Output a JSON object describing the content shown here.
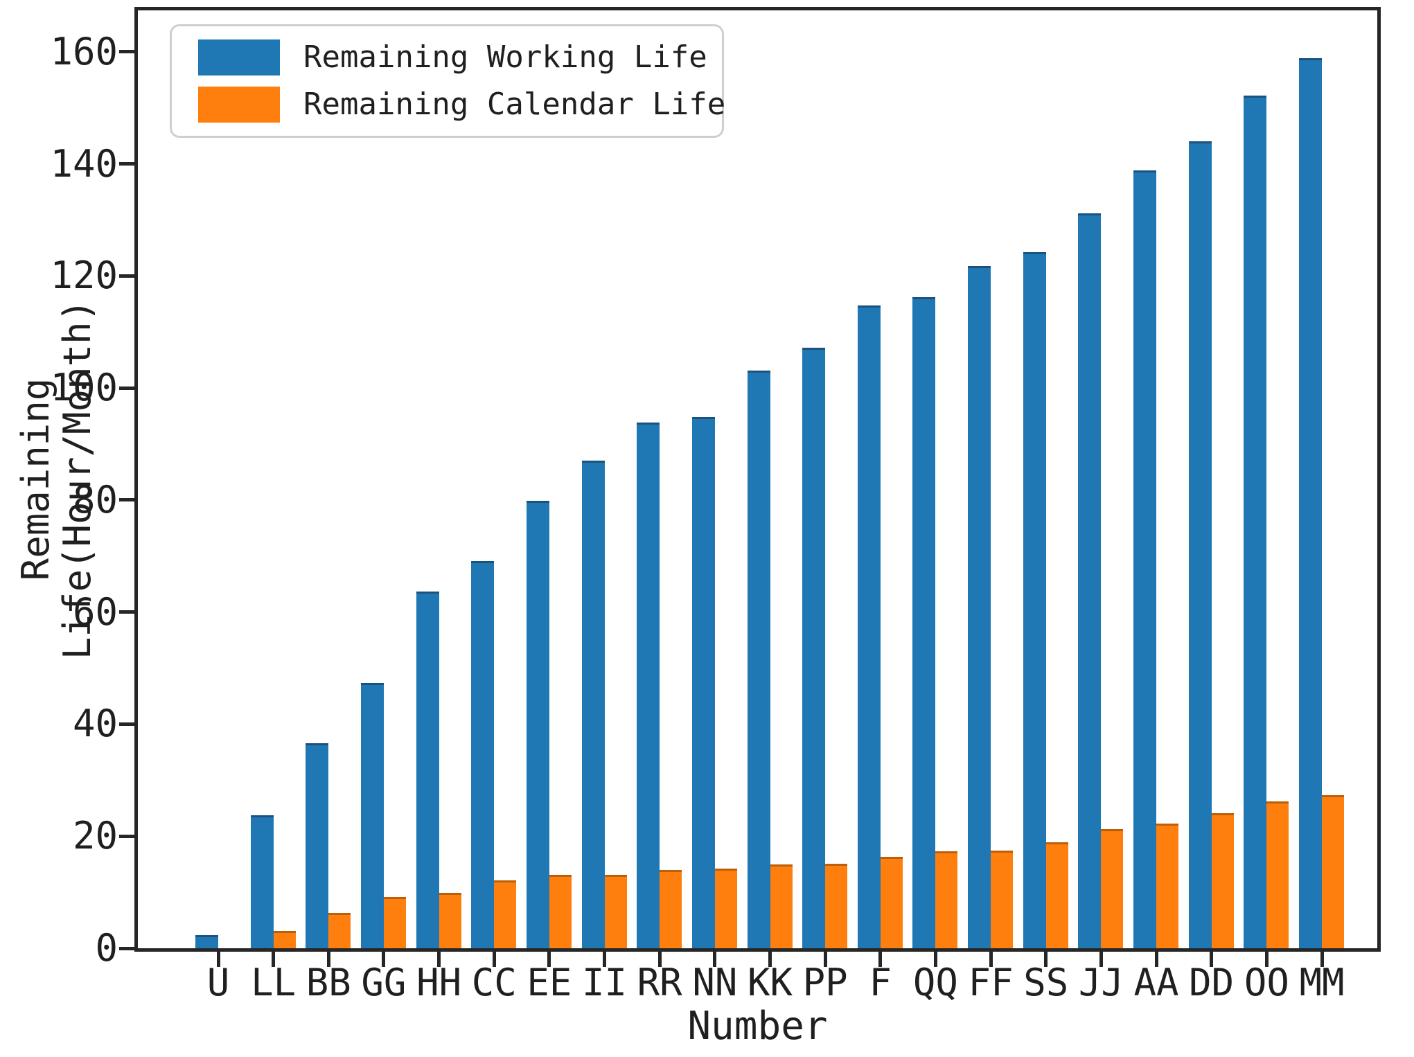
{
  "figure": {
    "background": "#ffffff"
  },
  "chart_data": {
    "type": "bar",
    "title": "",
    "xlabel": "Number",
    "ylabel": "Remaining Life(Hour/Month)",
    "categories": [
      "U",
      "LL",
      "BB",
      "GG",
      "HH",
      "CC",
      "EE",
      "II",
      "RR",
      "NN",
      "KK",
      "PP",
      "F",
      "QQ",
      "FF",
      "SS",
      "JJ",
      "AA",
      "DD",
      "OO",
      "MM"
    ],
    "series": [
      {
        "name": "Remaining Working Life",
        "color": "#1f77b4",
        "values": [
          2.3,
          23.8,
          36.6,
          47.3,
          63.7,
          69.1,
          79.9,
          87.0,
          93.9,
          94.8,
          103.1,
          107.2,
          114.8,
          116.2,
          121.8,
          124.2,
          131.2,
          138.9,
          144.0,
          152.2,
          158.9
        ]
      },
      {
        "name": "Remaining Calendar Life",
        "color": "#ff7f0e",
        "values": [
          0,
          3.1,
          6.3,
          9.1,
          9.9,
          12.1,
          13.1,
          13.1,
          14.0,
          14.2,
          15.0,
          15.1,
          16.3,
          17.3,
          17.4,
          18.9,
          21.3,
          22.2,
          24.1,
          26.2,
          27.3
        ]
      }
    ],
    "ylim": [
      0,
      160
    ],
    "yticks": [
      "0",
      "20",
      "40",
      "60",
      "80",
      "100",
      "120",
      "140",
      "160"
    ],
    "grid": false,
    "legend_position": "upper left"
  }
}
